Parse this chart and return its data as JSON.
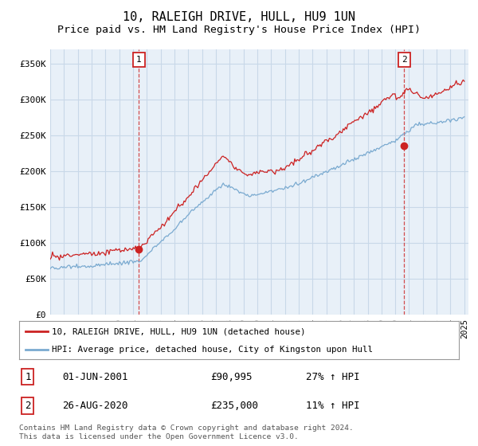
{
  "title": "10, RALEIGH DRIVE, HULL, HU9 1UN",
  "subtitle": "Price paid vs. HM Land Registry's House Price Index (HPI)",
  "ylim": [
    0,
    370000
  ],
  "yticks": [
    0,
    50000,
    100000,
    150000,
    200000,
    250000,
    300000,
    350000
  ],
  "ytick_labels": [
    "£0",
    "£50K",
    "£100K",
    "£150K",
    "£200K",
    "£250K",
    "£300K",
    "£350K"
  ],
  "line1_color": "#cc2222",
  "line2_color": "#7aaad0",
  "bg_plot_color": "#e8f0f8",
  "point1_year": 2001.42,
  "point1_value": 90995,
  "point2_year": 2020.65,
  "point2_value": 235000,
  "legend_line1": "10, RALEIGH DRIVE, HULL, HU9 1UN (detached house)",
  "legend_line2": "HPI: Average price, detached house, City of Kingston upon Hull",
  "table_row1_num": "1",
  "table_row1_date": "01-JUN-2001",
  "table_row1_price": "£90,995",
  "table_row1_hpi": "27% ↑ HPI",
  "table_row2_num": "2",
  "table_row2_date": "26-AUG-2020",
  "table_row2_price": "£235,000",
  "table_row2_hpi": "11% ↑ HPI",
  "footer": "Contains HM Land Registry data © Crown copyright and database right 2024.\nThis data is licensed under the Open Government Licence v3.0.",
  "bg_color": "#ffffff",
  "grid_color": "#c8d8e8",
  "title_fontsize": 11,
  "subtitle_fontsize": 9.5
}
